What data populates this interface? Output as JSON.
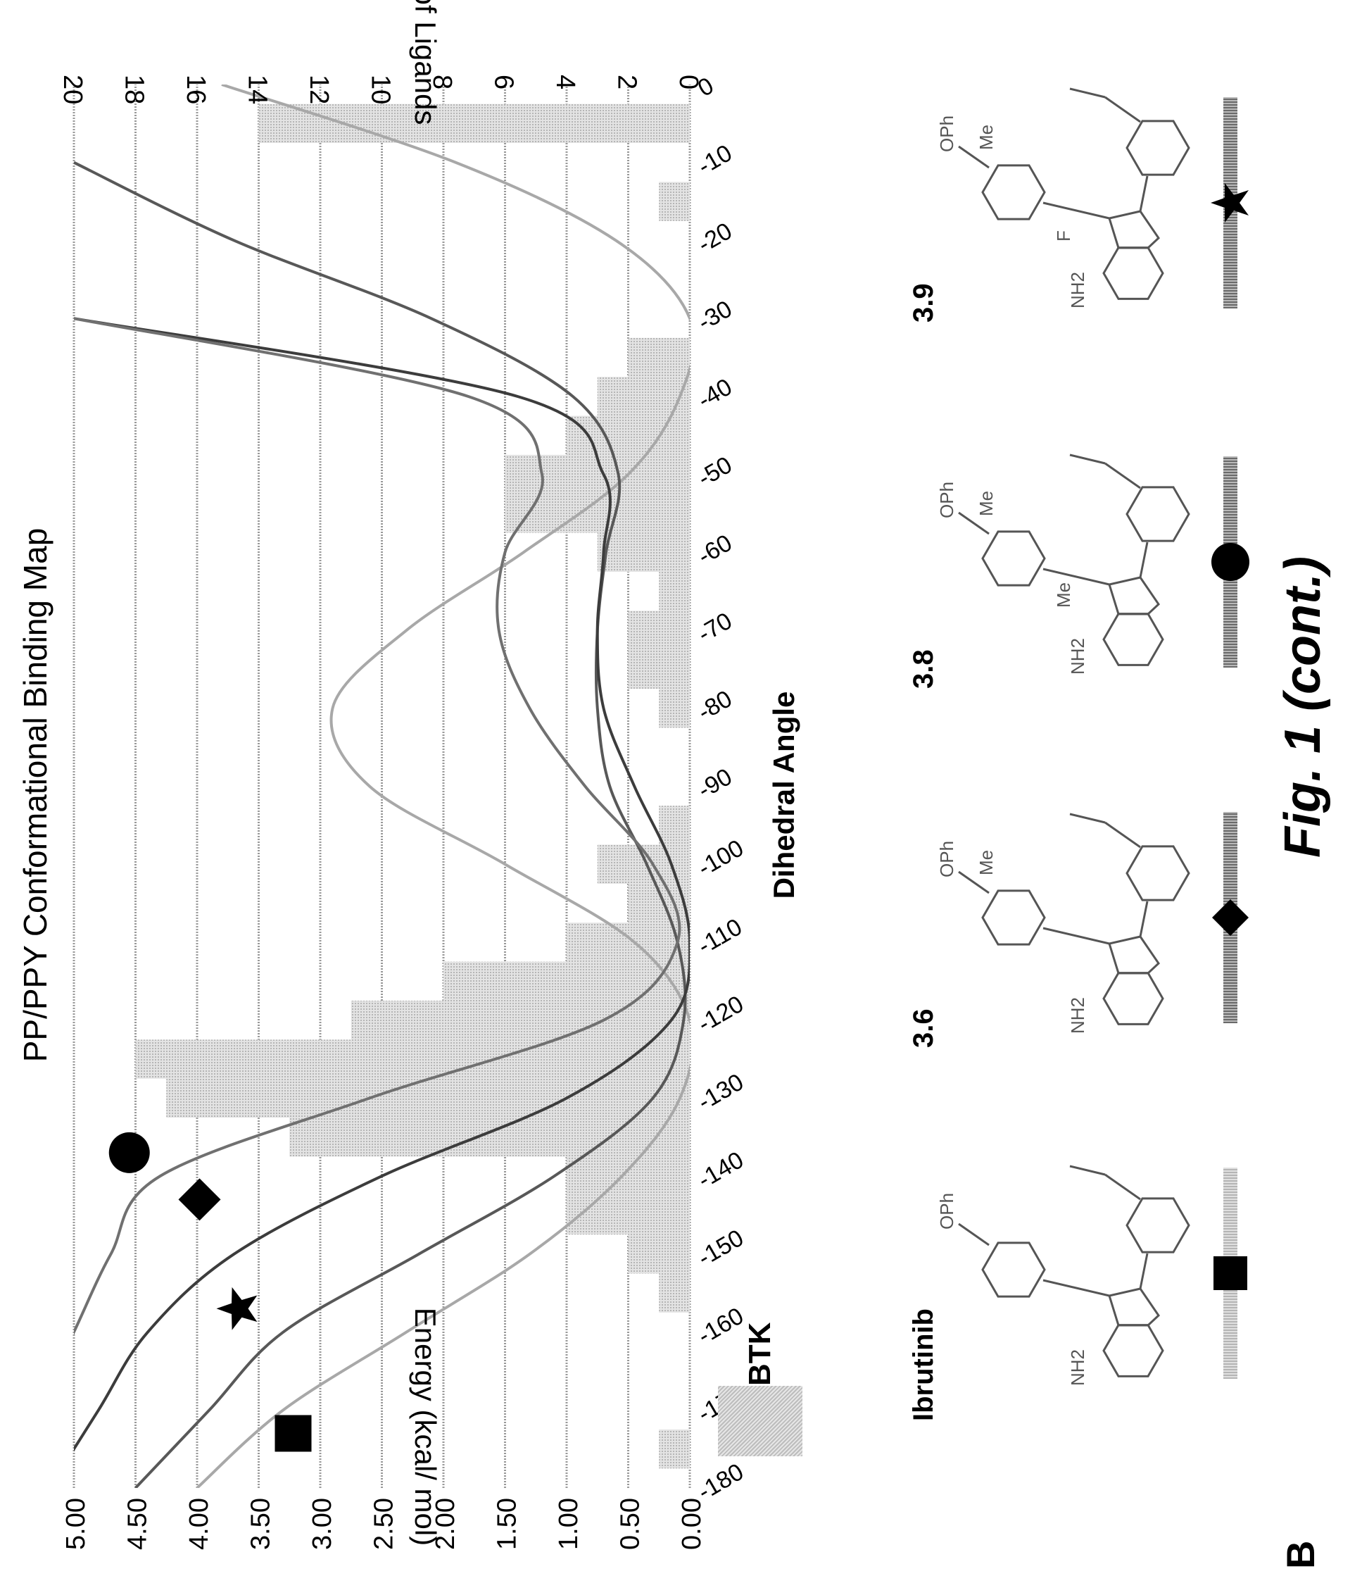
{
  "panel_label": "B",
  "figure_caption": "Fig. 1 (cont.)",
  "chart_data": {
    "type": "bar",
    "title": "PP/PPY Conformational Binding Map",
    "xlabel": "Dihedral Angle",
    "ylabel_left": "Energy (kcal/ mol)",
    "ylabel_right": "# of Ligands",
    "x_ticks": [
      "-180",
      "-170",
      "-160",
      "-150",
      "-140",
      "-130",
      "-120",
      "-110",
      "-100",
      "-90",
      "-80",
      "-70",
      "-60",
      "-50",
      "-40",
      "-30",
      "-20",
      "-10",
      "0"
    ],
    "x_range": [
      -180,
      0
    ],
    "y_left_range": [
      0,
      5
    ],
    "y_left_ticks": [
      "0.00",
      "0.50",
      "1.00",
      "1.50",
      "2.00",
      "2.50",
      "3.00",
      "3.50",
      "4.00",
      "4.50",
      "5.00"
    ],
    "y_right_range": [
      0,
      20
    ],
    "y_right_ticks": [
      "0",
      "2",
      "4",
      "6",
      "8",
      "10",
      "12",
      "14",
      "16",
      "18",
      "20"
    ],
    "grid": true,
    "legend": [
      {
        "name": "BTK",
        "color": "#c8c8c8"
      }
    ],
    "histogram": {
      "name": "BTK",
      "color": "#c8c8c8",
      "bin_width": 5,
      "bins": [
        {
          "x": -175,
          "count": 1
        },
        {
          "x": -170,
          "count": 0
        },
        {
          "x": -165,
          "count": 0
        },
        {
          "x": -160,
          "count": 0
        },
        {
          "x": -155,
          "count": 1
        },
        {
          "x": -150,
          "count": 2
        },
        {
          "x": -145,
          "count": 4
        },
        {
          "x": -140,
          "count": 4
        },
        {
          "x": -135,
          "count": 13
        },
        {
          "x": -130,
          "count": 17
        },
        {
          "x": -125,
          "count": 18
        },
        {
          "x": -120,
          "count": 11
        },
        {
          "x": -115,
          "count": 8
        },
        {
          "x": -110,
          "count": 4
        },
        {
          "x": -105,
          "count": 2
        },
        {
          "x": -100,
          "count": 3
        },
        {
          "x": -95,
          "count": 1
        },
        {
          "x": -90,
          "count": 0
        },
        {
          "x": -85,
          "count": 0
        },
        {
          "x": -80,
          "count": 1
        },
        {
          "x": -75,
          "count": 2
        },
        {
          "x": -70,
          "count": 2
        },
        {
          "x": -65,
          "count": 1
        },
        {
          "x": -60,
          "count": 3
        },
        {
          "x": -55,
          "count": 6
        },
        {
          "x": -50,
          "count": 6
        },
        {
          "x": -45,
          "count": 4
        },
        {
          "x": -40,
          "count": 3
        },
        {
          "x": -35,
          "count": 2
        },
        {
          "x": -30,
          "count": 0
        },
        {
          "x": -25,
          "count": 0
        },
        {
          "x": -20,
          "count": 0
        },
        {
          "x": -15,
          "count": 1
        },
        {
          "x": -10,
          "count": 0
        },
        {
          "x": -5,
          "count": 14
        }
      ]
    },
    "series": [
      {
        "name": "Ibrutinib",
        "marker": "square",
        "color": "#a8a8a8",
        "width": 4,
        "x": [
          -180,
          -170,
          -160,
          -150,
          -140,
          -130,
          -120,
          -110,
          -100,
          -90,
          -80,
          -70,
          -60,
          -50,
          -40,
          -30,
          -20,
          -10,
          0
        ],
        "y": [
          4.0,
          3.3,
          2.3,
          1.3,
          0.55,
          0.08,
          0.0,
          0.45,
          1.5,
          2.6,
          2.9,
          2.3,
          1.35,
          0.5,
          0.08,
          0.0,
          0.6,
          1.9,
          3.8
        ]
      },
      {
        "name": "3.9",
        "marker": "star",
        "color": "#585858",
        "width": 4,
        "x": [
          -180,
          -170,
          -160,
          -150,
          -140,
          -130,
          -120,
          -110,
          -100,
          -90,
          -80,
          -70,
          -60,
          -50,
          -40,
          -30,
          -20,
          -10
        ],
        "y": [
          4.5,
          3.9,
          3.3,
          2.2,
          1.1,
          0.3,
          0.05,
          0.1,
          0.35,
          0.65,
          0.75,
          0.75,
          0.68,
          0.58,
          0.95,
          2.1,
          3.7,
          5.0
        ]
      },
      {
        "name": "3.6",
        "marker": "diamond",
        "color": "#3c3c3c",
        "width": 4,
        "x": [
          -180,
          -170,
          -160,
          -150,
          -140,
          -130,
          -120,
          -110,
          -100,
          -90,
          -80,
          -70,
          -60,
          -50,
          -40,
          -30
        ],
        "y": [
          5.2,
          4.8,
          4.4,
          3.7,
          2.5,
          1.0,
          0.15,
          0.0,
          0.15,
          0.45,
          0.7,
          0.75,
          0.7,
          0.7,
          1.4,
          5.0
        ]
      },
      {
        "name": "3.8",
        "marker": "circle",
        "color": "#707070",
        "width": 4,
        "x": [
          -180,
          -170,
          -160,
          -150,
          -140,
          -130,
          -120,
          -110,
          -100,
          -90,
          -80,
          -70,
          -60,
          -50,
          -40,
          -30
        ],
        "y": [
          5.6,
          5.3,
          5.0,
          4.7,
          4.3,
          2.6,
          0.7,
          0.1,
          0.3,
          0.85,
          1.3,
          1.55,
          1.5,
          1.2,
          1.8,
          5.0
        ]
      }
    ],
    "markers": [
      {
        "series": "Ibrutinib",
        "shape": "square",
        "x": -173,
        "y": 3.22
      },
      {
        "series": "3.9",
        "shape": "star",
        "x": -157,
        "y": 3.66
      },
      {
        "series": "3.6",
        "shape": "diamond",
        "x": -143,
        "y": 3.98
      },
      {
        "series": "3.8",
        "shape": "circle",
        "x": -137,
        "y": 4.55
      }
    ]
  },
  "compounds": [
    {
      "id": "ibrutinib",
      "label": "Ibrutinib",
      "marker": "square",
      "opp": "OPh",
      "nh2": "NH2",
      "bar": "light"
    },
    {
      "id": "c36",
      "label": "3.6",
      "marker": "diamond",
      "opp": "OPh",
      "nh2": "NH2",
      "extra": [
        "Me"
      ],
      "bar": "dark"
    },
    {
      "id": "c38",
      "label": "3.8",
      "marker": "circle",
      "opp": "OPh",
      "nh2": "NH2",
      "extra": [
        "Me",
        "Me"
      ],
      "bar": "dark"
    },
    {
      "id": "c39",
      "label": "3.9",
      "marker": "star",
      "opp": "OPh",
      "nh2": "NH2",
      "extra": [
        "Me",
        "F"
      ],
      "bar": "dark"
    }
  ]
}
